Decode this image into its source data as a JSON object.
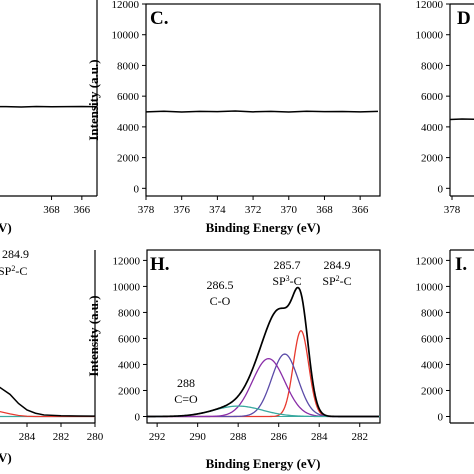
{
  "chart_data": [
    {
      "type": "line",
      "panel_label": "",
      "visible": "partial-right-edge",
      "x": [
        378,
        377,
        376,
        375,
        374,
        373,
        372,
        371,
        370,
        369,
        368,
        367,
        366,
        365
      ],
      "series": [
        {
          "values": [
            5200,
            5210,
            5190,
            5200,
            5180,
            5210,
            5190,
            5200,
            5180,
            5210,
            5190,
            5200,
            5210,
            5190
          ]
        }
      ],
      "tick_labels_x": [
        "368",
        "366"
      ],
      "xlim": [
        378,
        365
      ],
      "ylim": [
        -500,
        12000
      ]
    },
    {
      "type": "line",
      "panel_label": "C.",
      "xlabel": "Binding Energy (eV)",
      "ylabel": "Intensity (a.u.)",
      "xlim": [
        378,
        365
      ],
      "ylim": [
        -500,
        12000
      ],
      "tick_labels_x": [
        "378",
        "376",
        "374",
        "372",
        "370",
        "368",
        "366"
      ],
      "tick_labels_y": [
        "0",
        "2000",
        "4000",
        "6000",
        "8000",
        "10000",
        "12000"
      ],
      "x": [
        378,
        377,
        376,
        375,
        374,
        373,
        372,
        371,
        370,
        369,
        368,
        367,
        366,
        365
      ],
      "series": [
        {
          "values": [
            4980,
            5020,
            4970,
            5010,
            4990,
            5030,
            4980,
            5010,
            4970,
            5020,
            4990,
            5000,
            4980,
            5010
          ]
        }
      ]
    },
    {
      "type": "line",
      "panel_label": "D",
      "visible": "partial-left-edge",
      "tick_labels_y": [
        "0",
        "2000",
        "4000",
        "6000",
        "8000",
        "10000",
        "12000"
      ],
      "tick_labels_x": [
        "378"
      ],
      "series": [
        {
          "values": [
            4480,
            4510,
            4490
          ]
        }
      ],
      "ylim": [
        -500,
        12000
      ]
    },
    {
      "type": "line",
      "panel_label": "",
      "visible": "partial-right-edge",
      "tick_labels_x": [
        "284",
        "282",
        "280"
      ],
      "xlim": [
        287,
        280
      ],
      "ylim": [
        -500,
        12800
      ],
      "x": [
        287,
        286,
        285,
        284.5,
        284,
        283.5,
        283,
        282,
        281,
        280
      ],
      "series": [
        {
          "values": [
            3500,
            2600,
            1700,
            1000,
            500,
            250,
            120,
            60,
            40,
            30
          ]
        },
        {
          "values": [
            900,
            500,
            200,
            80,
            20,
            0,
            0,
            0,
            0,
            0
          ]
        }
      ],
      "annotations": [
        {
          "lines": [
            "284.9",
            "SP²-C"
          ]
        }
      ]
    },
    {
      "type": "line",
      "panel_label": "H.",
      "xlabel": "Binding Energy (eV)",
      "ylabel": "Intensity (a.u.)",
      "xlim": [
        292.5,
        281
      ],
      "ylim": [
        -500,
        12800
      ],
      "tick_labels_x": [
        "292",
        "290",
        "288",
        "286",
        "284",
        "282"
      ],
      "tick_labels_y": [
        "0",
        "2000",
        "4000",
        "6000",
        "8000",
        "10000",
        "12000"
      ],
      "peaks": [
        {
          "name": "SP²-C",
          "center": 284.9,
          "height": 6600,
          "sigma": 0.38,
          "color": "#e8392e"
        },
        {
          "name": "SP³-C",
          "center": 285.7,
          "height": 4800,
          "sigma": 0.65,
          "color": "#5b4ba8"
        },
        {
          "name": "C-O",
          "center": 286.5,
          "height": 4450,
          "sigma": 0.8,
          "color": "#8a2ea8"
        },
        {
          "name": "C=O",
          "center": 288.0,
          "height": 800,
          "sigma": 1.2,
          "color": "#3aa9a0"
        }
      ],
      "envelope_color": "#000000",
      "annotations": [
        {
          "lines": [
            "285.7",
            "SP³-C"
          ]
        },
        {
          "lines": [
            "284.9",
            "SP²-C"
          ]
        },
        {
          "lines": [
            "286.5",
            "C-O"
          ]
        },
        {
          "lines": [
            "288",
            "C=O"
          ]
        }
      ]
    },
    {
      "type": "line",
      "panel_label": "I.",
      "visible": "partial-left-edge",
      "tick_labels_y": [
        "0",
        "2000",
        "4000",
        "6000",
        "8000",
        "10000",
        "12000"
      ],
      "ylim": [
        -500,
        12800
      ]
    }
  ]
}
